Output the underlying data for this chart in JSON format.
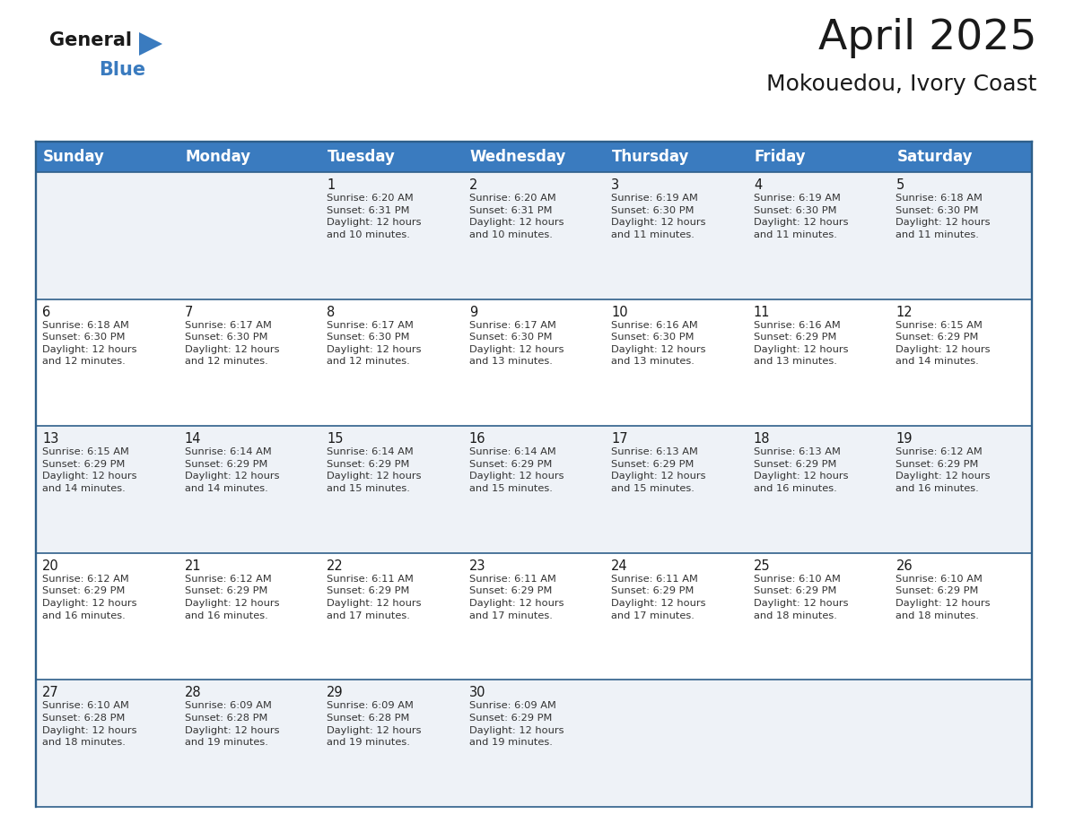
{
  "title": "April 2025",
  "subtitle": "Mokouedou, Ivory Coast",
  "header_color": "#3a7bbf",
  "header_text_color": "#ffffff",
  "cell_bg_light": "#eef2f7",
  "cell_bg_white": "#ffffff",
  "border_color": "#2e5f8a",
  "day_names": [
    "Sunday",
    "Monday",
    "Tuesday",
    "Wednesday",
    "Thursday",
    "Friday",
    "Saturday"
  ],
  "title_fontsize": 34,
  "subtitle_fontsize": 18,
  "header_fontsize": 12,
  "cell_number_fontsize": 10.5,
  "cell_text_fontsize": 8.2,
  "logo_general_color": "#1a1a1a",
  "logo_blue_color": "#3a7bbf",
  "logo_triangle_color": "#3a7bbf",
  "weeks": [
    [
      {
        "day": "",
        "sunrise": "",
        "sunset": "",
        "daylight": ""
      },
      {
        "day": "",
        "sunrise": "",
        "sunset": "",
        "daylight": ""
      },
      {
        "day": "1",
        "sunrise": "Sunrise: 6:20 AM",
        "sunset": "Sunset: 6:31 PM",
        "daylight": "Daylight: 12 hours\nand 10 minutes."
      },
      {
        "day": "2",
        "sunrise": "Sunrise: 6:20 AM",
        "sunset": "Sunset: 6:31 PM",
        "daylight": "Daylight: 12 hours\nand 10 minutes."
      },
      {
        "day": "3",
        "sunrise": "Sunrise: 6:19 AM",
        "sunset": "Sunset: 6:30 PM",
        "daylight": "Daylight: 12 hours\nand 11 minutes."
      },
      {
        "day": "4",
        "sunrise": "Sunrise: 6:19 AM",
        "sunset": "Sunset: 6:30 PM",
        "daylight": "Daylight: 12 hours\nand 11 minutes."
      },
      {
        "day": "5",
        "sunrise": "Sunrise: 6:18 AM",
        "sunset": "Sunset: 6:30 PM",
        "daylight": "Daylight: 12 hours\nand 11 minutes."
      }
    ],
    [
      {
        "day": "6",
        "sunrise": "Sunrise: 6:18 AM",
        "sunset": "Sunset: 6:30 PM",
        "daylight": "Daylight: 12 hours\nand 12 minutes."
      },
      {
        "day": "7",
        "sunrise": "Sunrise: 6:17 AM",
        "sunset": "Sunset: 6:30 PM",
        "daylight": "Daylight: 12 hours\nand 12 minutes."
      },
      {
        "day": "8",
        "sunrise": "Sunrise: 6:17 AM",
        "sunset": "Sunset: 6:30 PM",
        "daylight": "Daylight: 12 hours\nand 12 minutes."
      },
      {
        "day": "9",
        "sunrise": "Sunrise: 6:17 AM",
        "sunset": "Sunset: 6:30 PM",
        "daylight": "Daylight: 12 hours\nand 13 minutes."
      },
      {
        "day": "10",
        "sunrise": "Sunrise: 6:16 AM",
        "sunset": "Sunset: 6:30 PM",
        "daylight": "Daylight: 12 hours\nand 13 minutes."
      },
      {
        "day": "11",
        "sunrise": "Sunrise: 6:16 AM",
        "sunset": "Sunset: 6:29 PM",
        "daylight": "Daylight: 12 hours\nand 13 minutes."
      },
      {
        "day": "12",
        "sunrise": "Sunrise: 6:15 AM",
        "sunset": "Sunset: 6:29 PM",
        "daylight": "Daylight: 12 hours\nand 14 minutes."
      }
    ],
    [
      {
        "day": "13",
        "sunrise": "Sunrise: 6:15 AM",
        "sunset": "Sunset: 6:29 PM",
        "daylight": "Daylight: 12 hours\nand 14 minutes."
      },
      {
        "day": "14",
        "sunrise": "Sunrise: 6:14 AM",
        "sunset": "Sunset: 6:29 PM",
        "daylight": "Daylight: 12 hours\nand 14 minutes."
      },
      {
        "day": "15",
        "sunrise": "Sunrise: 6:14 AM",
        "sunset": "Sunset: 6:29 PM",
        "daylight": "Daylight: 12 hours\nand 15 minutes."
      },
      {
        "day": "16",
        "sunrise": "Sunrise: 6:14 AM",
        "sunset": "Sunset: 6:29 PM",
        "daylight": "Daylight: 12 hours\nand 15 minutes."
      },
      {
        "day": "17",
        "sunrise": "Sunrise: 6:13 AM",
        "sunset": "Sunset: 6:29 PM",
        "daylight": "Daylight: 12 hours\nand 15 minutes."
      },
      {
        "day": "18",
        "sunrise": "Sunrise: 6:13 AM",
        "sunset": "Sunset: 6:29 PM",
        "daylight": "Daylight: 12 hours\nand 16 minutes."
      },
      {
        "day": "19",
        "sunrise": "Sunrise: 6:12 AM",
        "sunset": "Sunset: 6:29 PM",
        "daylight": "Daylight: 12 hours\nand 16 minutes."
      }
    ],
    [
      {
        "day": "20",
        "sunrise": "Sunrise: 6:12 AM",
        "sunset": "Sunset: 6:29 PM",
        "daylight": "Daylight: 12 hours\nand 16 minutes."
      },
      {
        "day": "21",
        "sunrise": "Sunrise: 6:12 AM",
        "sunset": "Sunset: 6:29 PM",
        "daylight": "Daylight: 12 hours\nand 16 minutes."
      },
      {
        "day": "22",
        "sunrise": "Sunrise: 6:11 AM",
        "sunset": "Sunset: 6:29 PM",
        "daylight": "Daylight: 12 hours\nand 17 minutes."
      },
      {
        "day": "23",
        "sunrise": "Sunrise: 6:11 AM",
        "sunset": "Sunset: 6:29 PM",
        "daylight": "Daylight: 12 hours\nand 17 minutes."
      },
      {
        "day": "24",
        "sunrise": "Sunrise: 6:11 AM",
        "sunset": "Sunset: 6:29 PM",
        "daylight": "Daylight: 12 hours\nand 17 minutes."
      },
      {
        "day": "25",
        "sunrise": "Sunrise: 6:10 AM",
        "sunset": "Sunset: 6:29 PM",
        "daylight": "Daylight: 12 hours\nand 18 minutes."
      },
      {
        "day": "26",
        "sunrise": "Sunrise: 6:10 AM",
        "sunset": "Sunset: 6:29 PM",
        "daylight": "Daylight: 12 hours\nand 18 minutes."
      }
    ],
    [
      {
        "day": "27",
        "sunrise": "Sunrise: 6:10 AM",
        "sunset": "Sunset: 6:28 PM",
        "daylight": "Daylight: 12 hours\nand 18 minutes."
      },
      {
        "day": "28",
        "sunrise": "Sunrise: 6:09 AM",
        "sunset": "Sunset: 6:28 PM",
        "daylight": "Daylight: 12 hours\nand 19 minutes."
      },
      {
        "day": "29",
        "sunrise": "Sunrise: 6:09 AM",
        "sunset": "Sunset: 6:28 PM",
        "daylight": "Daylight: 12 hours\nand 19 minutes."
      },
      {
        "day": "30",
        "sunrise": "Sunrise: 6:09 AM",
        "sunset": "Sunset: 6:29 PM",
        "daylight": "Daylight: 12 hours\nand 19 minutes."
      },
      {
        "day": "",
        "sunrise": "",
        "sunset": "",
        "daylight": ""
      },
      {
        "day": "",
        "sunrise": "",
        "sunset": "",
        "daylight": ""
      },
      {
        "day": "",
        "sunrise": "",
        "sunset": "",
        "daylight": ""
      }
    ]
  ]
}
